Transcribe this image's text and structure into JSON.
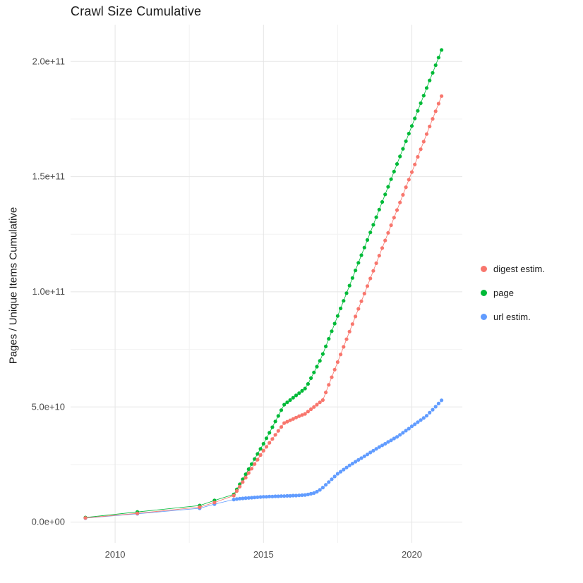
{
  "title": "Crawl Size Cumulative",
  "y_axis_label": "Pages / Unique Items Cumulative",
  "legend": {
    "position": "right",
    "items": [
      {
        "label": "digest estim.",
        "color": "#F8766D"
      },
      {
        "label": "page",
        "color": "#00BA38"
      },
      {
        "label": "url estim.",
        "color": "#619CFF"
      }
    ]
  },
  "chart_data": {
    "type": "scatter",
    "style": "points connected by thin same-color lines (ggplot-like)",
    "title": "Crawl Size Cumulative",
    "xlabel": "",
    "ylabel": "Pages / Unique Items Cumulative",
    "y_unit": "items, values stored in billions (1e9)",
    "x_domain": [
      2008.5,
      2021.7
    ],
    "y_domain_billions": [
      -9,
      216
    ],
    "x_ticks": [
      {
        "value": 2010,
        "label": "2010"
      },
      {
        "value": 2015,
        "label": "2015"
      },
      {
        "value": 2020,
        "label": "2020"
      }
    ],
    "y_ticks": [
      {
        "value_billions": 0,
        "label": "0.0e+00"
      },
      {
        "value_billions": 50,
        "label": "5.0e+10"
      },
      {
        "value_billions": 100,
        "label": "1.0e+11"
      },
      {
        "value_billions": 150,
        "label": "1.5e+11"
      },
      {
        "value_billions": 200,
        "label": "2.0e+11"
      }
    ],
    "grid": {
      "major_color": "#e5e5e5",
      "minor_color": "#f2f2f2",
      "x_minor": [
        2012.5,
        2017.5
      ],
      "y_minor_billions": [
        25,
        75,
        125,
        175
      ]
    },
    "series": [
      {
        "name": "digest estim.",
        "color": "#F8766D",
        "early_points_billions": [
          [
            2009.0,
            1.8
          ],
          [
            2010.75,
            3.8
          ],
          [
            2012.85,
            6.5
          ],
          [
            2013.35,
            8.5
          ]
        ],
        "dense": {
          "x_start": 2014.0,
          "x_step": 0.1,
          "values_billions": [
            11.5,
            13.5,
            15.4,
            17.4,
            19.3,
            21.3,
            23.2,
            25.2,
            27.1,
            29.1,
            31.0,
            32.7,
            34.4,
            36.1,
            37.9,
            39.6,
            41.3,
            43.0,
            43.6,
            44.2,
            44.8,
            45.4,
            46.0,
            46.5,
            47.0,
            48.0,
            49.0,
            50.0,
            51.0,
            52.0,
            53.0,
            56.3,
            59.6,
            62.9,
            66.2,
            69.5,
            72.8,
            76.1,
            79.4,
            82.7,
            86.0,
            89.3,
            92.6,
            95.9,
            99.2,
            102.5,
            105.8,
            109.1,
            112.4,
            115.7,
            119.0,
            122.3,
            125.6,
            128.9,
            132.2,
            135.5,
            138.8,
            142.1,
            145.4,
            148.7,
            152.0,
            155.3,
            158.6,
            161.9,
            165.2,
            168.5,
            171.8,
            175.1,
            178.4,
            181.7,
            185.0
          ]
        }
      },
      {
        "name": "page",
        "color": "#00BA38",
        "early_points_billions": [
          [
            2009.0,
            2.0
          ],
          [
            2010.75,
            4.4
          ],
          [
            2012.85,
            7.2
          ],
          [
            2013.35,
            9.4
          ]
        ],
        "dense": {
          "x_start": 2014.0,
          "x_step": 0.1,
          "values_billions": [
            12.0,
            14.2,
            16.4,
            18.6,
            20.8,
            23.0,
            25.2,
            27.4,
            29.6,
            31.8,
            34.0,
            36.4,
            38.8,
            41.2,
            43.7,
            46.1,
            48.6,
            51.0,
            52.0,
            53.0,
            54.0,
            55.0,
            56.0,
            57.0,
            58.0,
            60.0,
            62.5,
            65.0,
            67.5,
            70.0,
            73.0,
            76.3,
            79.6,
            82.9,
            86.2,
            89.5,
            92.8,
            96.1,
            99.4,
            102.7,
            106.0,
            109.3,
            112.6,
            115.9,
            119.2,
            122.5,
            125.8,
            129.1,
            132.4,
            135.7,
            139.0,
            142.3,
            145.6,
            148.9,
            152.2,
            155.5,
            158.8,
            162.1,
            165.4,
            168.7,
            172.0,
            175.3,
            178.6,
            181.9,
            185.2,
            188.5,
            191.8,
            195.1,
            198.4,
            201.7,
            205.0
          ]
        }
      },
      {
        "name": "url estim.",
        "color": "#619CFF",
        "early_points_billions": [
          [
            2009.0,
            1.7
          ],
          [
            2010.75,
            3.6
          ],
          [
            2012.85,
            6.0
          ],
          [
            2013.35,
            7.8
          ]
        ],
        "dense": {
          "x_start": 2014.0,
          "x_step": 0.1,
          "values_billions": [
            9.8,
            10.0,
            10.2,
            10.3,
            10.4,
            10.5,
            10.6,
            10.7,
            10.8,
            10.9,
            11.0,
            11.0,
            11.1,
            11.1,
            11.2,
            11.2,
            11.3,
            11.3,
            11.4,
            11.4,
            11.5,
            11.5,
            11.6,
            11.7,
            11.8,
            12.0,
            12.3,
            12.6,
            13.2,
            14.0,
            15.0,
            16.2,
            17.4,
            18.6,
            19.8,
            21.0,
            21.9,
            22.8,
            23.7,
            24.6,
            25.4,
            26.2,
            27.0,
            27.8,
            28.6,
            29.4,
            30.2,
            31.0,
            31.8,
            32.6,
            33.3,
            34.0,
            34.8,
            35.5,
            36.3,
            37.0,
            37.9,
            38.8,
            39.7,
            40.6,
            41.6,
            42.5,
            43.4,
            44.3,
            45.2,
            46.2,
            47.5,
            48.8,
            50.1,
            51.5,
            52.9
          ]
        }
      }
    ]
  }
}
